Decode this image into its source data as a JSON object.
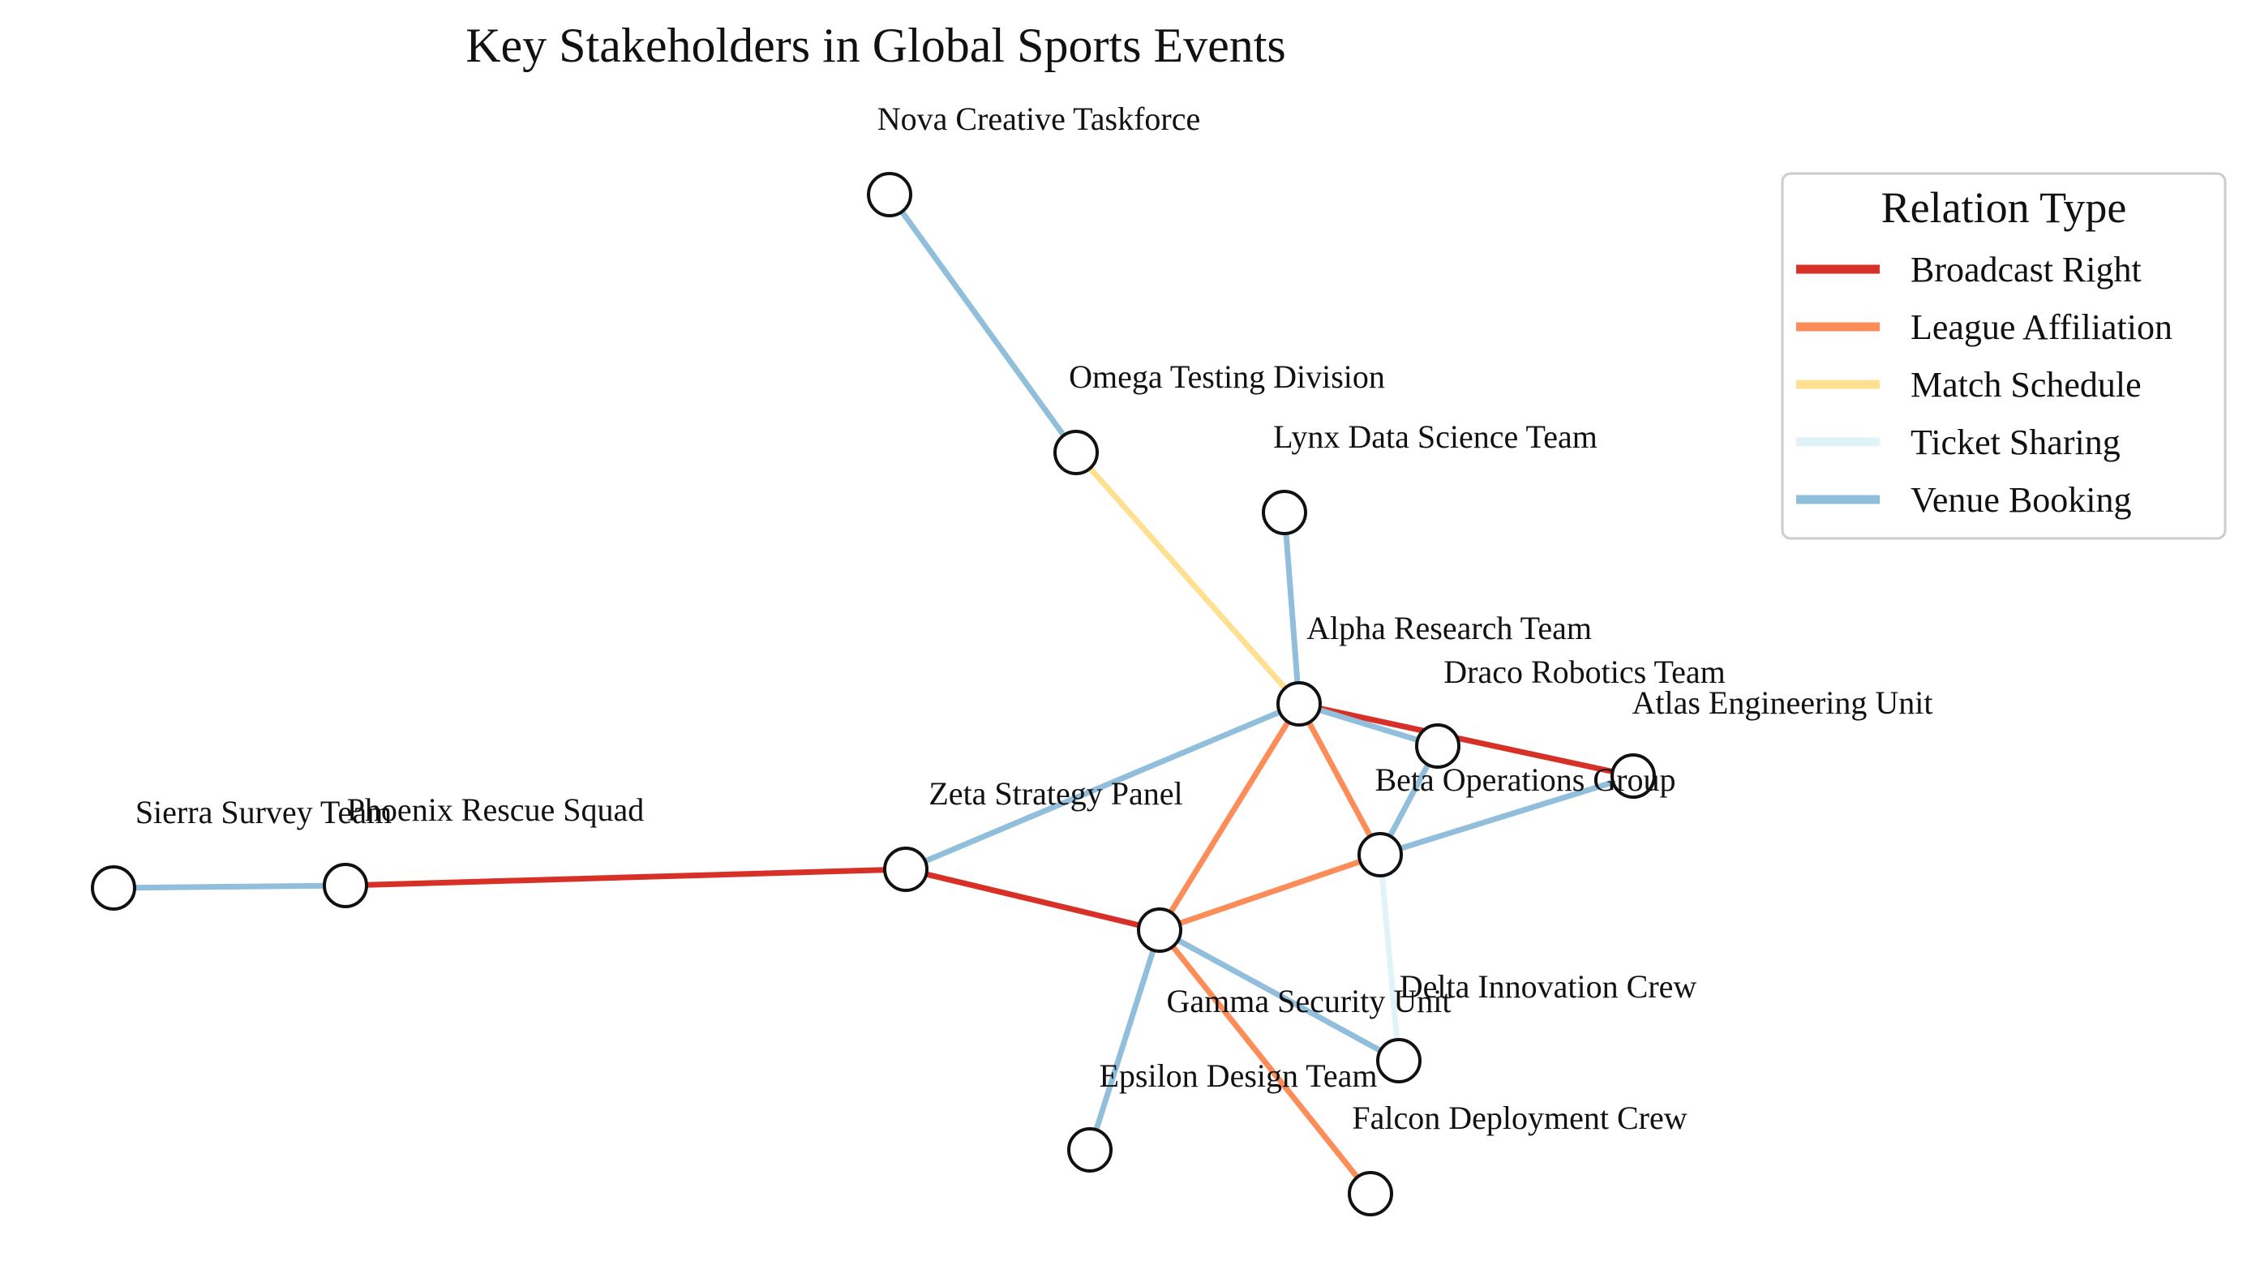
{
  "title": "Key Stakeholders in Global Sports Events",
  "legend": {
    "title": "Relation Type",
    "items": [
      {
        "key": "broadcast",
        "label": "Broadcast Right",
        "color": "#d73027"
      },
      {
        "key": "league",
        "label": "League Affiliation",
        "color": "#fc8d59"
      },
      {
        "key": "schedule",
        "label": "Match Schedule",
        "color": "#fee090"
      },
      {
        "key": "ticket",
        "label": "Ticket Sharing",
        "color": "#e0f3f8"
      },
      {
        "key": "venue",
        "label": "Venue Booking",
        "color": "#91bfdb"
      }
    ]
  },
  "nodes": [
    {
      "id": "nova",
      "label": "Nova Creative Taskforce"
    },
    {
      "id": "omega",
      "label": "Omega Testing Division"
    },
    {
      "id": "lynx",
      "label": "Lynx Data Science Team"
    },
    {
      "id": "alpha",
      "label": "Alpha Research Team"
    },
    {
      "id": "draco",
      "label": "Draco Robotics Team"
    },
    {
      "id": "atlas",
      "label": "Atlas Engineering Unit"
    },
    {
      "id": "beta",
      "label": "Beta Operations Group"
    },
    {
      "id": "zeta",
      "label": "Zeta Strategy Panel"
    },
    {
      "id": "phoenix",
      "label": "Phoenix Rescue Squad"
    },
    {
      "id": "sierra",
      "label": "Sierra Survey Team"
    },
    {
      "id": "gamma",
      "label": "Gamma Security Unit"
    },
    {
      "id": "delta",
      "label": "Delta Innovation Crew"
    },
    {
      "id": "epsilon",
      "label": "Epsilon Design Team"
    },
    {
      "id": "falcon",
      "label": "Falcon Deployment Crew"
    }
  ],
  "edges": [
    {
      "source": "nova",
      "target": "omega",
      "type": "venue"
    },
    {
      "source": "omega",
      "target": "alpha",
      "type": "schedule"
    },
    {
      "source": "lynx",
      "target": "alpha",
      "type": "venue"
    },
    {
      "source": "alpha",
      "target": "atlas",
      "type": "broadcast"
    },
    {
      "source": "alpha",
      "target": "draco",
      "type": "venue"
    },
    {
      "source": "alpha",
      "target": "beta",
      "type": "league"
    },
    {
      "source": "alpha",
      "target": "gamma",
      "type": "league"
    },
    {
      "source": "alpha",
      "target": "zeta",
      "type": "venue"
    },
    {
      "source": "draco",
      "target": "beta",
      "type": "venue"
    },
    {
      "source": "atlas",
      "target": "beta",
      "type": "venue"
    },
    {
      "source": "beta",
      "target": "gamma",
      "type": "league"
    },
    {
      "source": "beta",
      "target": "delta",
      "type": "ticket"
    },
    {
      "source": "zeta",
      "target": "gamma",
      "type": "broadcast"
    },
    {
      "source": "zeta",
      "target": "phoenix",
      "type": "broadcast"
    },
    {
      "source": "phoenix",
      "target": "sierra",
      "type": "venue"
    },
    {
      "source": "gamma",
      "target": "delta",
      "type": "venue"
    },
    {
      "source": "gamma",
      "target": "epsilon",
      "type": "venue"
    },
    {
      "source": "gamma",
      "target": "falcon",
      "type": "league"
    }
  ]
}
